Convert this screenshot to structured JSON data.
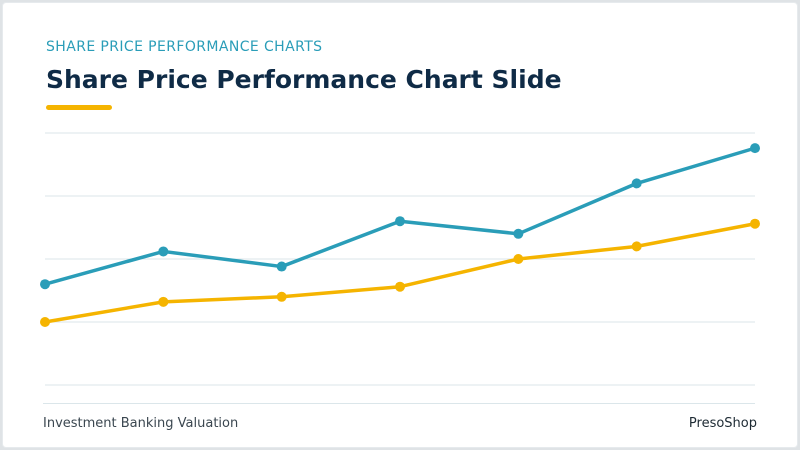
{
  "header": {
    "eyebrow": "SHARE PRICE PERFORMANCE CHARTS",
    "title": "Share Price Performance Chart Slide"
  },
  "footer": {
    "left": "Investment Banking Valuation",
    "right": "PresoShop"
  },
  "colors": {
    "accent": "#f5b400",
    "series_1": "#2a9db8",
    "series_2": "#f5b400",
    "gridline": "#dbe6ea"
  },
  "chart_data": {
    "type": "line",
    "x": [
      1,
      2,
      3,
      4,
      5,
      6,
      7
    ],
    "series": [
      {
        "values": [
          40,
          53,
          47,
          65,
          60,
          80,
          94
        ]
      },
      {
        "values": [
          25,
          33,
          35,
          39,
          50,
          55,
          64
        ]
      }
    ],
    "ylim": [
      0,
      100
    ],
    "gridlines": [
      0,
      25,
      50,
      75,
      100
    ],
    "grid": true,
    "legend": "none"
  }
}
